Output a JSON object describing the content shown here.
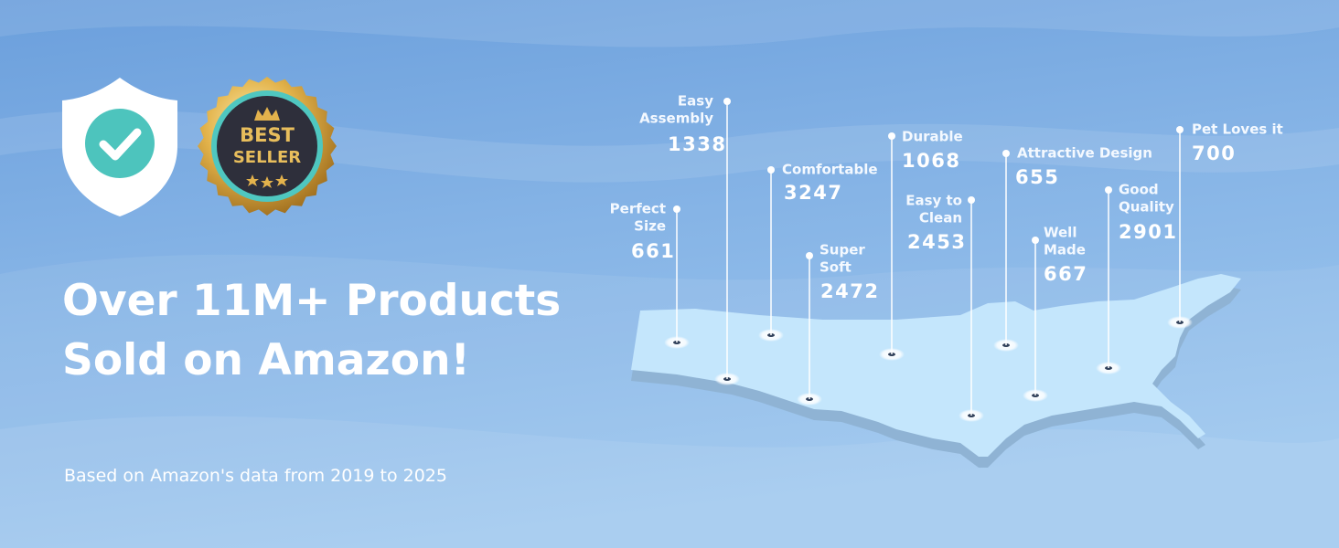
{
  "headline": [
    "Over 11M+ Products",
    "Sold on Amazon!"
  ],
  "subtitle": "Based on Amazon's data from 2019 to 2025",
  "badge": {
    "line1": "BEST",
    "line2": "SELLER"
  },
  "pins": [
    {
      "label": [
        "Perfect",
        "Size"
      ],
      "count": 661
    },
    {
      "label": [
        "Easy",
        "Assembly"
      ],
      "count": 1338
    },
    {
      "label": [
        "Comfortable"
      ],
      "count": 3247
    },
    {
      "label": [
        "Super",
        "Soft"
      ],
      "count": 2472
    },
    {
      "label": [
        "Durable"
      ],
      "count": 1068
    },
    {
      "label": [
        "Easy to",
        "Clean"
      ],
      "count": 2453
    },
    {
      "label": [
        "Attractive Design"
      ],
      "count": 655
    },
    {
      "label": [
        "Well",
        "Made"
      ],
      "count": 667
    },
    {
      "label": [
        "Good",
        "Quality"
      ],
      "count": 2901
    },
    {
      "label": [
        "Pet Loves it"
      ],
      "count": 700
    }
  ]
}
